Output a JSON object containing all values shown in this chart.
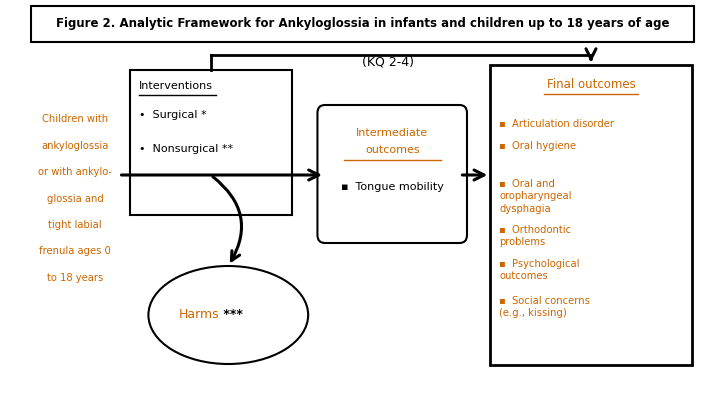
{
  "title": "Figure 2. Analytic Framework for Ankyloglossia in infants and children up to 18 years of age",
  "kq_label": "(KQ 2-4)",
  "population_text": [
    "Children with",
    "ankyloglossia",
    "or with ankylo-",
    "glossia and",
    "tight labial",
    "frenula ages 0",
    "to 18 years"
  ],
  "interventions_title": "Interventions",
  "interventions_items": [
    "Surgical *",
    "Nonsurgical **"
  ],
  "intermediate_title_1": "Intermediate",
  "intermediate_title_2": "outcomes",
  "intermediate_items": [
    "Tongue mobility"
  ],
  "final_title": "Final outcomes",
  "final_items": [
    "Articulation disorder",
    "Oral hygiene",
    "Oral and\noropharyngeal\ndysphagia",
    "Orthodontic\nproblems",
    "Psychological\noutcomes",
    "Social concerns\n(e.g., kissing)"
  ],
  "harms_word": "Harms",
  "harms_stars": " ***",
  "text_color_black": "#000000",
  "text_color_orange": "#CC6600",
  "fig_bg": "#ffffff"
}
